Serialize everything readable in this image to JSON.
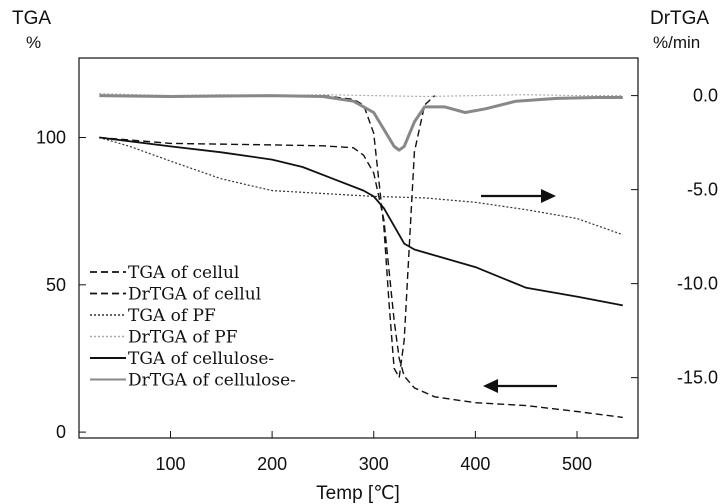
{
  "chart_data": {
    "type": "line",
    "title": "",
    "xlabel": "Temp [℃]",
    "ylabel_left": "TGA",
    "ylabel_left_unit": "%",
    "ylabel_right": "DrTGA",
    "ylabel_right_unit": "%/min",
    "xlim": [
      10,
      560
    ],
    "ylim_left": [
      -2,
      127
    ],
    "ylim_right": [
      -18.21,
      2.0
    ],
    "x_ticks": [
      100,
      200,
      300,
      400,
      500
    ],
    "x_tick_labels": [
      "100",
      "200",
      "300",
      "400",
      "500"
    ],
    "y_left_ticks": [
      0,
      50,
      100
    ],
    "y_left_tick_labels": [
      "0",
      "50",
      "100"
    ],
    "y_right_ticks": [
      0.0,
      -5.0,
      -10.0,
      -15.0
    ],
    "y_right_tick_labels": [
      "0.0",
      "-5.0",
      "-10.0",
      "-15.0"
    ],
    "grid": false,
    "legend_position": "bottom-left",
    "series": [
      {
        "name": "TGA of cellul",
        "axis": "left",
        "style": "dashed",
        "color": "#111111",
        "x": [
          30,
          100,
          200,
          250,
          280,
          290,
          300,
          310,
          315,
          320,
          325,
          330,
          340,
          360,
          400,
          450,
          500,
          545
        ],
        "y": [
          100,
          98,
          97.5,
          97.2,
          96.5,
          94,
          88,
          72,
          55,
          38,
          25,
          19,
          15,
          12,
          10,
          9,
          7,
          5
        ]
      },
      {
        "name": "DrTGA of cellul",
        "axis": "right",
        "style": "dashed",
        "color": "#111111",
        "x": [
          250,
          280,
          290,
          300,
          310,
          315,
          320,
          325,
          330,
          335,
          340,
          350,
          360
        ],
        "y": [
          0.0,
          -0.2,
          -0.5,
          -2.0,
          -7.0,
          -11.0,
          -14.5,
          -15.0,
          -13.0,
          -8.0,
          -3.0,
          -0.5,
          0.0
        ]
      },
      {
        "name": "TGA of PF",
        "axis": "left",
        "style": "dotted",
        "color": "#333333",
        "x": [
          30,
          60,
          100,
          150,
          200,
          250,
          300,
          350,
          400,
          450,
          500,
          545
        ],
        "y": [
          100,
          97,
          92,
          86,
          82,
          81,
          80,
          79.5,
          78,
          75.5,
          72.5,
          67
        ]
      },
      {
        "name": "DrTGA of PF",
        "axis": "right",
        "style": "dotted",
        "color": "#aaaaaa",
        "x": [
          30,
          100,
          150,
          200,
          250,
          300,
          350,
          400,
          450,
          500,
          545
        ],
        "y": [
          0.1,
          0.0,
          0.05,
          0.0,
          0.05,
          0.0,
          -0.05,
          0.0,
          0.05,
          0.0,
          0.0
        ]
      },
      {
        "name": "TGA of cellulose-",
        "axis": "left",
        "style": "solid",
        "color": "#111111",
        "x": [
          30,
          100,
          150,
          200,
          230,
          260,
          290,
          300,
          310,
          320,
          330,
          340,
          360,
          400,
          450,
          500,
          545
        ],
        "y": [
          100,
          97,
          95,
          92.5,
          90,
          86,
          82,
          80,
          76,
          70,
          64,
          62,
          60,
          56,
          49,
          46,
          43
        ]
      },
      {
        "name": "DrTGA of cellulose-",
        "axis": "right",
        "style": "solid",
        "color": "#888888",
        "x": [
          30,
          100,
          200,
          250,
          280,
          300,
          310,
          320,
          325,
          330,
          340,
          350,
          370,
          390,
          410,
          440,
          480,
          520,
          545
        ],
        "y": [
          0.0,
          -0.05,
          0.0,
          -0.05,
          -0.3,
          -0.9,
          -1.8,
          -2.7,
          -2.9,
          -2.7,
          -1.4,
          -0.6,
          -0.6,
          -0.9,
          -0.7,
          -0.3,
          -0.15,
          -0.1,
          -0.1
        ]
      }
    ],
    "annotations": [
      {
        "type": "arrow",
        "direction": "right",
        "refers_to_axis": "right"
      },
      {
        "type": "arrow",
        "direction": "left",
        "refers_to_axis": "left"
      }
    ]
  }
}
